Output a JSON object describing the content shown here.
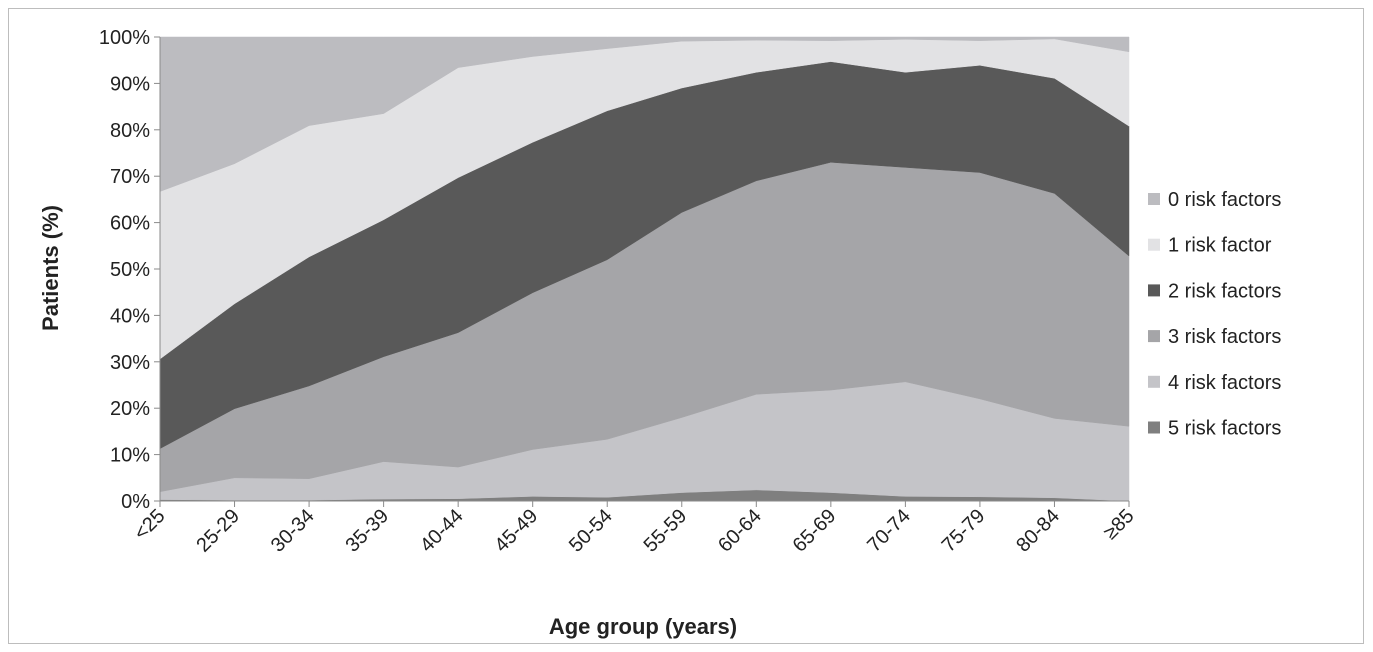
{
  "chart_data": {
    "type": "area",
    "stacked": true,
    "percent": true,
    "xlabel": "Age group (years)",
    "ylabel": "Patients (%)",
    "ylim": [
      0,
      100
    ],
    "yticks": [
      "0%",
      "10%",
      "20%",
      "30%",
      "40%",
      "50%",
      "60%",
      "70%",
      "80%",
      "90%",
      "100%"
    ],
    "categories": [
      "<25",
      "25-29",
      "30-34",
      "35-39",
      "40-44",
      "45-49",
      "50-54",
      "55-59",
      "60-64",
      "65-69",
      "70-74",
      "75-79",
      "80-84",
      "≥85"
    ],
    "legend_position": "right",
    "series": [
      {
        "name": "5 risk factors",
        "color": "#7f7f7f",
        "values": [
          0.3,
          0.2,
          0.2,
          0.4,
          0.5,
          1.0,
          0.8,
          1.8,
          2.4,
          1.8,
          1.0,
          0.9,
          0.7,
          0.0
        ]
      },
      {
        "name": "4 risk factors",
        "color": "#c4c4c8",
        "values": [
          1.7,
          4.8,
          4.6,
          8.1,
          6.8,
          10.1,
          12.5,
          16.2,
          20.6,
          22.1,
          24.7,
          21.1,
          17.1,
          16.1
        ]
      },
      {
        "name": "3 risk factors",
        "color": "#a5a5a8",
        "values": [
          9.3,
          14.9,
          20.0,
          22.6,
          29.0,
          33.8,
          38.7,
          44.2,
          46.0,
          49.1,
          46.2,
          48.8,
          48.5,
          36.7
        ]
      },
      {
        "name": "2 risk factors",
        "color": "#595959",
        "values": [
          19.3,
          22.6,
          27.8,
          29.5,
          33.4,
          32.4,
          32.1,
          26.8,
          23.4,
          21.7,
          20.5,
          23.1,
          24.8,
          28.0
        ]
      },
      {
        "name": "1 risk factor",
        "color": "#e2e2e4",
        "values": [
          36.1,
          30.2,
          28.3,
          22.9,
          23.7,
          18.5,
          13.4,
          10.1,
          6.9,
          4.5,
          7.1,
          5.3,
          8.5,
          16.0
        ]
      },
      {
        "name": "0 risk factors",
        "color": "#bcbcc0",
        "values": [
          33.3,
          27.3,
          19.1,
          16.5,
          6.6,
          4.2,
          2.5,
          0.9,
          0.7,
          0.8,
          0.5,
          0.8,
          0.4,
          3.2
        ]
      }
    ],
    "legend_order": [
      "0 risk factors",
      "1 risk factor",
      "2 risk factors",
      "3 risk factors",
      "4 risk factors",
      "5 risk factors"
    ]
  }
}
